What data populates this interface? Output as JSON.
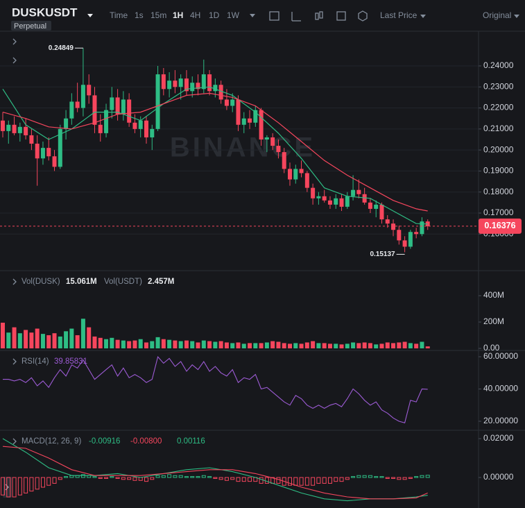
{
  "toolbar": {
    "symbol": "DUSKUSDT",
    "market": "Perpetual",
    "intervals": [
      "Time",
      "1s",
      "15m",
      "1H",
      "4H",
      "1D",
      "1W"
    ],
    "active_interval": "1H",
    "price_type": "Last Price",
    "view": "Original"
  },
  "chart_data": [
    {
      "type": "candlestick",
      "watermark": "BINANCE",
      "up_color": "#2ebd85",
      "down_color": "#f6465d",
      "grid": true,
      "ylim": [
        0.1426,
        0.2565
      ],
      "yticks": [
        {
          "value": 0.16,
          "label": "0.16000"
        },
        {
          "value": 0.17,
          "label": "0.17000"
        },
        {
          "value": 0.18,
          "label": "0.18000"
        },
        {
          "value": 0.19,
          "label": "0.19000"
        },
        {
          "value": 0.2,
          "label": "0.20000"
        },
        {
          "value": 0.21,
          "label": "0.21000"
        },
        {
          "value": 0.22,
          "label": "0.22000"
        },
        {
          "value": 0.23,
          "label": "0.23000"
        },
        {
          "value": 0.24,
          "label": "0.24000"
        }
      ],
      "candles": [
        [
          0.214,
          0.218,
          0.206,
          0.209
        ],
        [
          0.209,
          0.214,
          0.203,
          0.212
        ],
        [
          0.212,
          0.216,
          0.207,
          0.208
        ],
        [
          0.208,
          0.213,
          0.204,
          0.211
        ],
        [
          0.211,
          0.215,
          0.205,
          0.207
        ],
        [
          0.207,
          0.21,
          0.2,
          0.203
        ],
        [
          0.203,
          0.207,
          0.183,
          0.196
        ],
        [
          0.196,
          0.204,
          0.193,
          0.201
        ],
        [
          0.201,
          0.206,
          0.195,
          0.197
        ],
        [
          0.197,
          0.2,
          0.19,
          0.192
        ],
        [
          0.192,
          0.212,
          0.191,
          0.21
        ],
        [
          0.21,
          0.219,
          0.205,
          0.215
        ],
        [
          0.215,
          0.227,
          0.212,
          0.223
        ],
        [
          0.223,
          0.232,
          0.218,
          0.22
        ],
        [
          0.22,
          0.24849,
          0.216,
          0.231
        ],
        [
          0.231,
          0.236,
          0.222,
          0.226
        ],
        [
          0.226,
          0.23,
          0.208,
          0.212
        ],
        [
          0.212,
          0.217,
          0.204,
          0.208
        ],
        [
          0.208,
          0.222,
          0.206,
          0.219
        ],
        [
          0.219,
          0.23,
          0.215,
          0.225
        ],
        [
          0.225,
          0.229,
          0.214,
          0.217
        ],
        [
          0.217,
          0.228,
          0.214,
          0.224
        ],
        [
          0.224,
          0.227,
          0.211,
          0.213
        ],
        [
          0.213,
          0.217,
          0.208,
          0.21
        ],
        [
          0.21,
          0.216,
          0.206,
          0.214
        ],
        [
          0.214,
          0.216,
          0.203,
          0.206
        ],
        [
          0.206,
          0.212,
          0.2,
          0.21
        ],
        [
          0.21,
          0.24,
          0.209,
          0.236
        ],
        [
          0.236,
          0.239,
          0.226,
          0.229
        ],
        [
          0.229,
          0.237,
          0.225,
          0.233
        ],
        [
          0.233,
          0.238,
          0.227,
          0.23
        ],
        [
          0.23,
          0.236,
          0.224,
          0.234
        ],
        [
          0.234,
          0.238,
          0.226,
          0.228
        ],
        [
          0.228,
          0.235,
          0.225,
          0.232
        ],
        [
          0.232,
          0.236,
          0.226,
          0.229
        ],
        [
          0.229,
          0.243,
          0.227,
          0.236
        ],
        [
          0.236,
          0.238,
          0.226,
          0.228
        ],
        [
          0.228,
          0.234,
          0.225,
          0.231
        ],
        [
          0.231,
          0.233,
          0.222,
          0.224
        ],
        [
          0.224,
          0.229,
          0.219,
          0.221
        ],
        [
          0.221,
          0.227,
          0.218,
          0.224
        ],
        [
          0.224,
          0.226,
          0.209,
          0.212
        ],
        [
          0.212,
          0.218,
          0.208,
          0.215
        ],
        [
          0.215,
          0.219,
          0.21,
          0.213
        ],
        [
          0.213,
          0.221,
          0.211,
          0.219
        ],
        [
          0.219,
          0.22,
          0.202,
          0.205
        ],
        [
          0.205,
          0.207,
          0.199,
          0.206
        ],
        [
          0.206,
          0.208,
          0.2,
          0.202
        ],
        [
          0.202,
          0.205,
          0.196,
          0.199
        ],
        [
          0.199,
          0.201,
          0.189,
          0.191
        ],
        [
          0.191,
          0.194,
          0.183,
          0.186
        ],
        [
          0.186,
          0.193,
          0.184,
          0.191
        ],
        [
          0.191,
          0.195,
          0.187,
          0.189
        ],
        [
          0.189,
          0.19,
          0.18,
          0.182
        ],
        [
          0.182,
          0.184,
          0.174,
          0.177
        ],
        [
          0.177,
          0.18,
          0.174,
          0.178
        ],
        [
          0.178,
          0.181,
          0.175,
          0.176
        ],
        [
          0.176,
          0.178,
          0.172,
          0.174
        ],
        [
          0.174,
          0.179,
          0.172,
          0.177
        ],
        [
          0.177,
          0.179,
          0.171,
          0.173
        ],
        [
          0.173,
          0.18,
          0.172,
          0.178
        ],
        [
          0.178,
          0.188,
          0.176,
          0.181
        ],
        [
          0.181,
          0.186,
          0.177,
          0.179
        ],
        [
          0.179,
          0.182,
          0.174,
          0.175
        ],
        [
          0.175,
          0.177,
          0.17,
          0.172
        ],
        [
          0.172,
          0.176,
          0.168,
          0.174
        ],
        [
          0.174,
          0.175,
          0.165,
          0.167
        ],
        [
          0.167,
          0.169,
          0.163,
          0.165
        ],
        [
          0.165,
          0.167,
          0.159,
          0.162
        ],
        [
          0.162,
          0.164,
          0.155,
          0.157
        ],
        [
          0.157,
          0.159,
          0.15137,
          0.154
        ],
        [
          0.154,
          0.162,
          0.153,
          0.161
        ],
        [
          0.161,
          0.163,
          0.158,
          0.16
        ],
        [
          0.16,
          0.168,
          0.159,
          0.166
        ],
        [
          0.166,
          0.167,
          0.162,
          0.16376
        ]
      ],
      "ma": [
        {
          "color": "#2ebd85",
          "x": [
            0,
            4,
            8,
            12,
            16,
            20,
            24,
            28,
            32,
            36,
            40,
            44,
            48,
            52,
            56,
            60,
            64,
            68,
            72,
            74
          ],
          "values": [
            0.229,
            0.212,
            0.205,
            0.21,
            0.218,
            0.218,
            0.214,
            0.222,
            0.229,
            0.23,
            0.226,
            0.218,
            0.208,
            0.196,
            0.182,
            0.178,
            0.177,
            0.171,
            0.165,
            0.1648
          ]
        },
        {
          "color": "#f6465d",
          "x": [
            0,
            4,
            8,
            12,
            16,
            20,
            24,
            28,
            32,
            36,
            40,
            44,
            48,
            52,
            56,
            60,
            64,
            68,
            72,
            74
          ],
          "values": [
            0.218,
            0.215,
            0.211,
            0.21,
            0.213,
            0.217,
            0.218,
            0.222,
            0.226,
            0.227,
            0.225,
            0.221,
            0.213,
            0.204,
            0.195,
            0.188,
            0.182,
            0.176,
            0.172,
            0.171
          ]
        }
      ],
      "high_label": "0.24849",
      "low_label": "0.15137",
      "last_price": {
        "value": 0.16376,
        "label": "0.16376"
      },
      "last_price_color": "#f6465d"
    },
    {
      "type": "bar",
      "up_color": "#2ebd85",
      "down_color": "#f6465d",
      "legend": [
        {
          "name": "Vol(DUSK)",
          "value_label": "15.061M"
        },
        {
          "name": "Vol(USDT)",
          "value_label": "2.457M"
        }
      ],
      "ylim": [
        0,
        590
      ],
      "yticks": [
        {
          "value": 0,
          "label": "0.00"
        },
        {
          "value": 200,
          "label": "200M"
        },
        {
          "value": 400,
          "label": "400M"
        }
      ],
      "values": [
        195,
        120,
        160,
        115,
        140,
        120,
        150,
        110,
        100,
        115,
        90,
        130,
        150,
        100,
        225,
        160,
        90,
        80,
        70,
        80,
        65,
        60,
        55,
        60,
        70,
        45,
        55,
        85,
        70,
        65,
        60,
        55,
        60,
        55,
        45,
        60,
        55,
        50,
        55,
        45,
        40,
        45,
        35,
        40,
        40,
        40,
        45,
        55,
        50,
        40,
        35,
        40,
        35,
        45,
        55,
        40,
        40,
        35,
        35,
        30,
        35,
        45,
        40,
        45,
        40,
        30,
        35,
        45,
        40,
        45,
        50,
        40,
        35,
        50,
        15.061
      ]
    },
    {
      "type": "line",
      "title": "RSI(14)",
      "value_label": "39.85831",
      "color": "#9c5bd4",
      "ylim": [
        14.4,
        63.9
      ],
      "yticks": [
        {
          "value": 20,
          "label": "20.00000"
        },
        {
          "value": 40,
          "label": "40.00000"
        },
        {
          "value": 60,
          "label": "60.00000"
        }
      ],
      "values": [
        46,
        46,
        45,
        46,
        44,
        47,
        42,
        45,
        41,
        47,
        52,
        48,
        55,
        53,
        58,
        52,
        46,
        49,
        52,
        55,
        48,
        53,
        47,
        49,
        47,
        44,
        46,
        60,
        56,
        59,
        54,
        57,
        51,
        55,
        52,
        57,
        51,
        54,
        50,
        48,
        52,
        44,
        47,
        46,
        49,
        40,
        41,
        38,
        35,
        32,
        30,
        36,
        34,
        30,
        28,
        30,
        28,
        30,
        31,
        29,
        34,
        40,
        37,
        33,
        30,
        32,
        27,
        25,
        22,
        20,
        19,
        33,
        32,
        40,
        39.85831
      ]
    },
    {
      "type": "macd",
      "title": "MACD(12, 26, 9)",
      "ylim": [
        -0.0157,
        0.0243
      ],
      "yticks": [
        {
          "value": 0,
          "label": "0.00000"
        },
        {
          "value": 0.02,
          "label": "0.02000"
        }
      ],
      "series": [
        {
          "color": "#2ebd85",
          "value_label": "-0.00916",
          "x": [
            0,
            4,
            8,
            12,
            16,
            20,
            24,
            28,
            32,
            36,
            40,
            44,
            48,
            52,
            56,
            60,
            64,
            68,
            72,
            74
          ],
          "values": [
            0.02,
            0.013,
            0.005,
            0.001,
            0.001,
            0.002,
            0,
            0.002,
            0.004,
            0.005,
            0.003,
            0,
            -0.004,
            -0.008,
            -0.011,
            -0.012,
            -0.011,
            -0.011,
            -0.01,
            -0.00916
          ]
        },
        {
          "color": "#f6465d",
          "value_label": "-0.00800",
          "x": [
            0,
            4,
            8,
            12,
            16,
            20,
            24,
            28,
            32,
            36,
            40,
            44,
            48,
            52,
            56,
            60,
            64,
            68,
            72,
            74
          ],
          "values": [
            0.016,
            0.015,
            0.01,
            0.004,
            0.001,
            0.001,
            0.001,
            0.002,
            0.003,
            0.004,
            0.004,
            0.002,
            -0.001,
            -0.005,
            -0.008,
            -0.01,
            -0.011,
            -0.011,
            -0.0105,
            -0.008
          ]
        }
      ],
      "histogram": {
        "up_color": "#2ebd85",
        "down_color": "#f6465d",
        "value_label": "0.00116",
        "values": [
          -0.009,
          -0.01,
          -0.01,
          -0.009,
          -0.008,
          -0.007,
          -0.006,
          -0.005,
          -0.004,
          -0.003,
          -0.001,
          0.0005,
          0.001,
          0.001,
          0.0015,
          0.001,
          0.0005,
          -0.0005,
          -0.0005,
          0.0005,
          -0.0005,
          -0.001,
          -0.001,
          -0.0015,
          -0.0015,
          -0.002,
          -0.001,
          0.001,
          0.001,
          0.0015,
          0.001,
          0.001,
          0.0005,
          0.0005,
          0.0005,
          0.001,
          0.0005,
          -0.0005,
          -0.001,
          -0.0015,
          -0.001,
          -0.002,
          -0.002,
          -0.002,
          -0.002,
          -0.003,
          -0.003,
          -0.003,
          -0.003,
          -0.004,
          -0.004,
          -0.004,
          -0.004,
          -0.004,
          -0.004,
          -0.003,
          -0.003,
          -0.003,
          -0.002,
          -0.002,
          -0.001,
          0.0005,
          0.001,
          0.001,
          0.001,
          0.0005,
          0.0005,
          -0.0005,
          -0.0005,
          -0.001,
          -0.001,
          -0.0005,
          0.0005,
          0.001,
          0.00116
        ]
      }
    }
  ]
}
